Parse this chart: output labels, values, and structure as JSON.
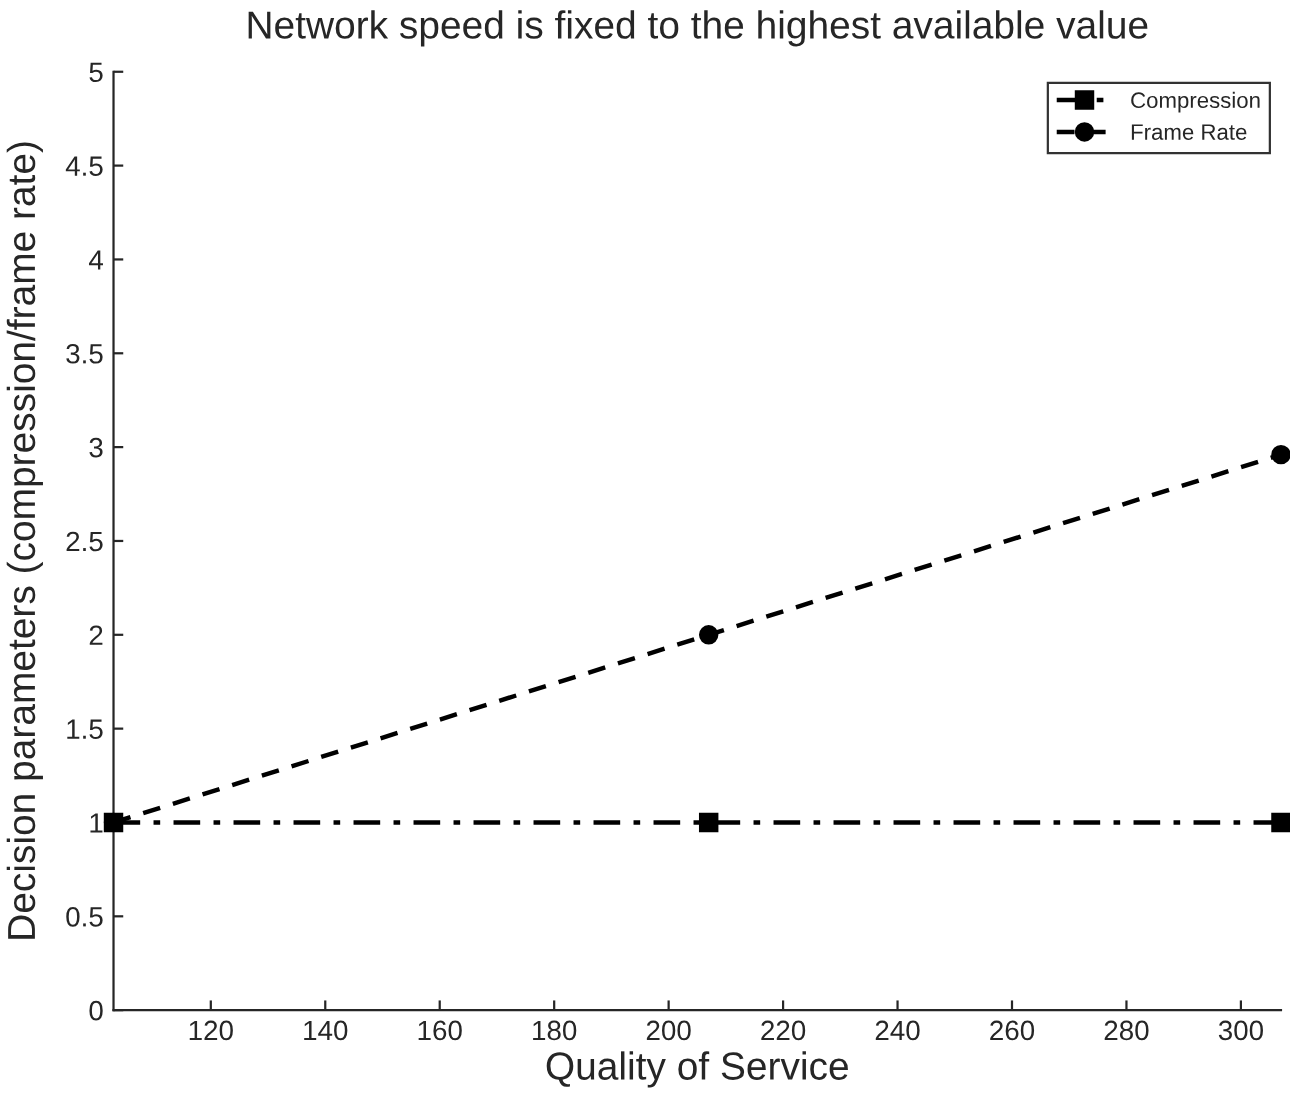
{
  "chart_data": {
    "type": "line",
    "title": "Network speed is fixed to the highest available value",
    "xlabel": "Quality of Service",
    "ylabel": "Decision parameters (compression/frame rate)",
    "series": [
      {
        "name": "Compression",
        "color": "#000000",
        "x": [
          103,
          207,
          307
        ],
        "values": [
          1,
          1,
          1
        ],
        "marker": "square",
        "line_style": "dashdot"
      },
      {
        "name": "Frame Rate",
        "color": "#000000",
        "x": [
          103,
          207,
          307
        ],
        "values": [
          1,
          2,
          2.96
        ],
        "marker": "circle",
        "line_style": "dashed"
      }
    ],
    "xlim": [
      103,
      307
    ],
    "xticks": [
      120,
      140,
      160,
      180,
      200,
      220,
      240,
      260,
      280,
      300
    ],
    "ylim": [
      0,
      5
    ],
    "yticks": [
      0,
      0.5,
      1,
      1.5,
      2,
      2.5,
      3,
      3.5,
      4,
      4.5,
      5
    ],
    "grid": false,
    "legend": "top right"
  }
}
